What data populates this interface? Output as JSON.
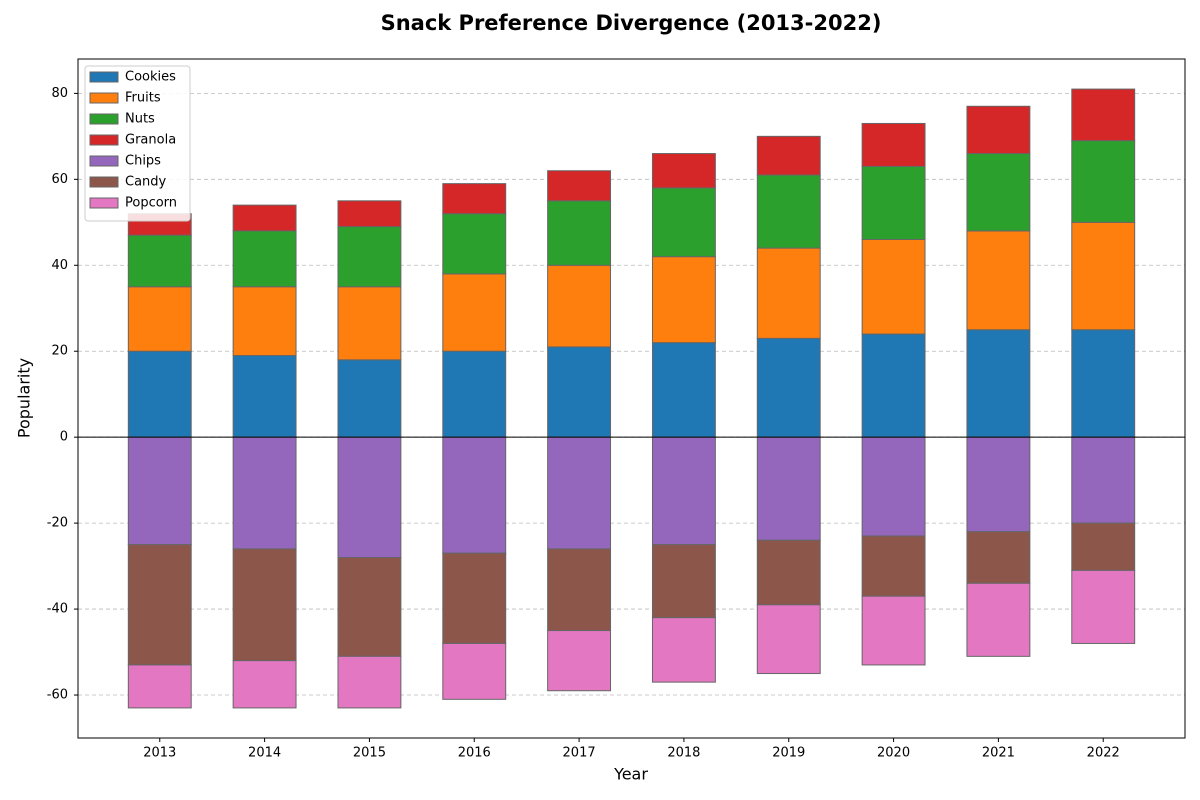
{
  "chart_data": {
    "type": "bar",
    "stacked": true,
    "title": "Snack Preference Divergence (2013-2022)",
    "x_label": "Year",
    "y_label": "Popularity",
    "categories": [
      "2013",
      "2014",
      "2015",
      "2016",
      "2017",
      "2018",
      "2019",
      "2020",
      "2021",
      "2022"
    ],
    "series": [
      {
        "name": "Cookies",
        "color": "#1f77b4",
        "values": [
          20,
          19,
          18,
          20,
          21,
          22,
          23,
          24,
          25,
          25
        ]
      },
      {
        "name": "Fruits",
        "color": "#ff7f0e",
        "values": [
          15,
          16,
          17,
          18,
          19,
          20,
          21,
          22,
          23,
          25
        ]
      },
      {
        "name": "Nuts",
        "color": "#2ca02c",
        "values": [
          12,
          13,
          14,
          14,
          15,
          16,
          17,
          17,
          18,
          19
        ]
      },
      {
        "name": "Granola",
        "color": "#d62728",
        "values": [
          5,
          6,
          6,
          7,
          7,
          8,
          9,
          10,
          11,
          12
        ]
      },
      {
        "name": "Chips",
        "color": "#9467bd",
        "values": [
          -25,
          -26,
          -28,
          -27,
          -26,
          -25,
          -24,
          -23,
          -22,
          -20
        ]
      },
      {
        "name": "Candy",
        "color": "#8c564b",
        "values": [
          -28,
          -26,
          -23,
          -21,
          -19,
          -17,
          -15,
          -14,
          -12,
          -11
        ]
      },
      {
        "name": "Popcorn",
        "color": "#e377c2",
        "values": [
          -10,
          -11,
          -12,
          -13,
          -14,
          -15,
          -16,
          -16,
          -17,
          -17
        ]
      }
    ],
    "ylim": [
      -70,
      88
    ],
    "yticks": [
      -60,
      -40,
      -20,
      0,
      20,
      40,
      60,
      80
    ],
    "grid": true,
    "legend": "upper-left"
  }
}
